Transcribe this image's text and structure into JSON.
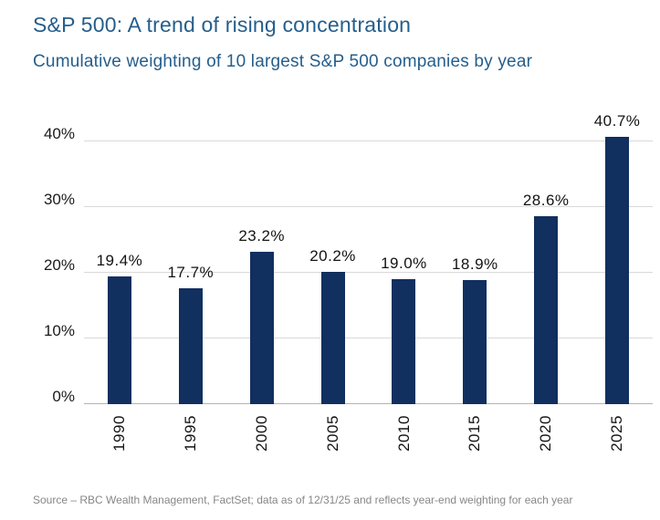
{
  "header": {
    "title": "S&P 500: A trend of rising concentration",
    "subtitle": "Cumulative weighting of 10 largest S&P 500 companies by year"
  },
  "chart_data": {
    "type": "bar",
    "categories": [
      "1990",
      "1995",
      "2000",
      "2005",
      "2010",
      "2015",
      "2020",
      "2025"
    ],
    "values": [
      19.4,
      17.7,
      23.2,
      20.2,
      19.0,
      18.9,
      28.6,
      40.7
    ],
    "data_labels": [
      "19.4%",
      "17.7%",
      "23.2%",
      "20.2%",
      "19.0%",
      "18.9%",
      "28.6%",
      "40.7%"
    ],
    "title": "S&P 500: A trend of rising concentration",
    "subtitle": "Cumulative weighting of 10 largest S&P 500 companies by year",
    "xlabel": "",
    "ylabel": "",
    "ylim": [
      0,
      40
    ],
    "y_ticks": [
      0,
      10,
      20,
      30,
      40
    ],
    "y_tick_labels": [
      "0%",
      "10%",
      "20%",
      "30%",
      "40%"
    ],
    "grid": true,
    "legend": false,
    "bar_color": "#112f5f"
  },
  "footer": {
    "source": "Source – RBC Wealth Management, FactSet; data as of 12/31/25 and reflects year-end weighting for each year"
  },
  "colors": {
    "heading_blue": "#255e8c",
    "bar_navy": "#112f5f",
    "gridline_gray": "#d9d9d9",
    "axis_text": "#131313",
    "source_gray": "#878787"
  }
}
